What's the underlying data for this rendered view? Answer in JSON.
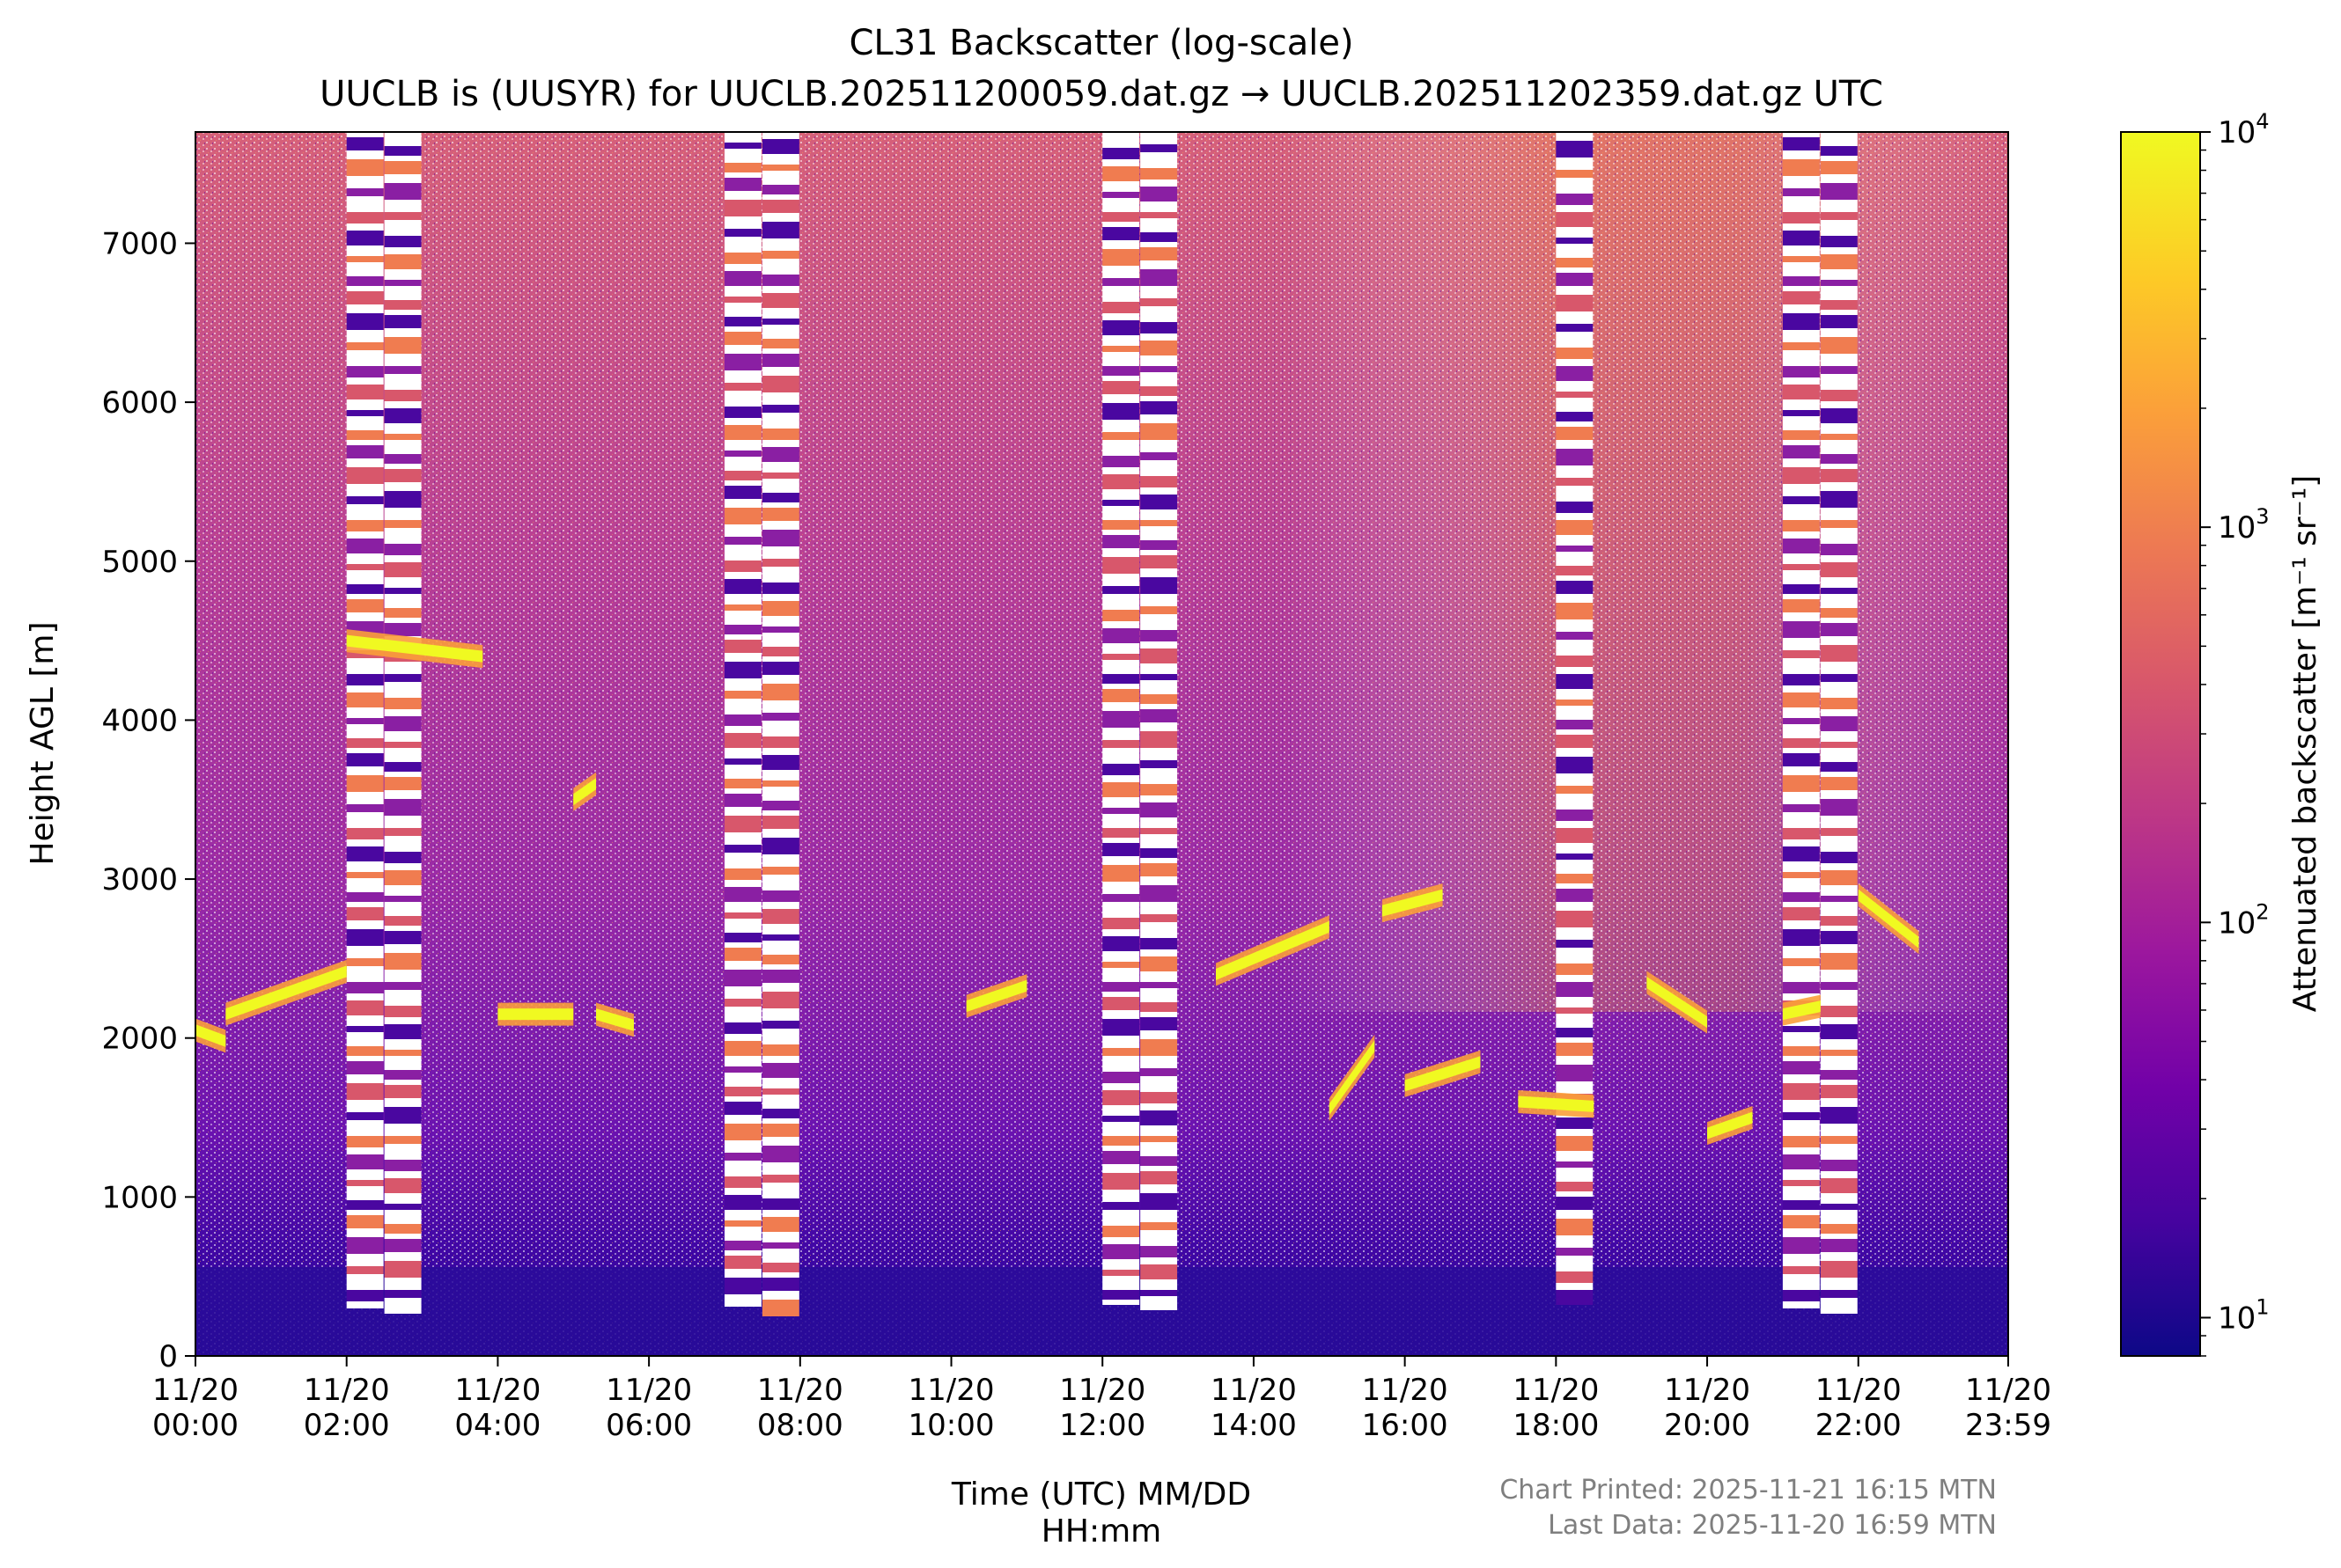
{
  "chart_data": {
    "type": "heatmap",
    "title": "CL31 Backscatter (log-scale)",
    "subtitle": "UUCLB is (UUSYR) for UUCLB.202511200059.dat.gz → UUCLB.202511202359.dat.gz UTC",
    "xlabel_line1": "Time (UTC) MM/DD",
    "xlabel_line2": "HH:mm",
    "ylabel": "Height AGL [m]",
    "xlim_hours": [
      0,
      23.983
    ],
    "ylim": [
      0,
      7700
    ],
    "x_ticks": [
      {
        "hour": 0,
        "date": "11/20",
        "time": "00:00"
      },
      {
        "hour": 2,
        "date": "11/20",
        "time": "02:00"
      },
      {
        "hour": 4,
        "date": "11/20",
        "time": "04:00"
      },
      {
        "hour": 6,
        "date": "11/20",
        "time": "06:00"
      },
      {
        "hour": 8,
        "date": "11/20",
        "time": "08:00"
      },
      {
        "hour": 10,
        "date": "11/20",
        "time": "10:00"
      },
      {
        "hour": 12,
        "date": "11/20",
        "time": "12:00"
      },
      {
        "hour": 14,
        "date": "11/20",
        "time": "14:00"
      },
      {
        "hour": 16,
        "date": "11/20",
        "time": "16:00"
      },
      {
        "hour": 18,
        "date": "11/20",
        "time": "18:00"
      },
      {
        "hour": 20,
        "date": "11/20",
        "time": "20:00"
      },
      {
        "hour": 22,
        "date": "11/20",
        "time": "22:00"
      },
      {
        "hour": 23.983,
        "date": "11/20",
        "time": "23:59"
      }
    ],
    "y_ticks": [
      {
        "value": 0,
        "label": "0"
      },
      {
        "value": 1000,
        "label": "1000"
      },
      {
        "value": 2000,
        "label": "2000"
      },
      {
        "value": 3000,
        "label": "3000"
      },
      {
        "value": 4000,
        "label": "4000"
      },
      {
        "value": 5000,
        "label": "5000"
      },
      {
        "value": 6000,
        "label": "6000"
      },
      {
        "value": 7000,
        "label": "7000"
      }
    ],
    "colorbar": {
      "colormap": "plasma",
      "scale": "log",
      "range": [
        8,
        10000
      ],
      "label": "Attenuated backscatter [m⁻¹ sr⁻¹]",
      "ticks": [
        {
          "value": 10,
          "base": "10",
          "exp": "1"
        },
        {
          "value": 100,
          "base": "10",
          "exp": "2"
        },
        {
          "value": 1000,
          "base": "10",
          "exp": "3"
        },
        {
          "value": 10000,
          "base": "10",
          "exp": "4"
        }
      ],
      "colors": [
        "#0d0887",
        "#46039f",
        "#7201a8",
        "#9c179e",
        "#bd3786",
        "#d8576b",
        "#ed7953",
        "#fb9f3a",
        "#fdca26",
        "#f0f921"
      ]
    },
    "banded_data_gaps_hours": [
      [
        2.0,
        2.5
      ],
      [
        2.5,
        3.0
      ],
      [
        7.0,
        7.5
      ],
      [
        7.5,
        8.0
      ],
      [
        12.0,
        12.5
      ],
      [
        12.5,
        13.0
      ],
      [
        18.0,
        18.5
      ],
      [
        21.0,
        21.5
      ],
      [
        21.5,
        22.0
      ]
    ],
    "cloud_layers": [
      {
        "t_start": 0.0,
        "t_end": 0.4,
        "h_start": 2050,
        "h_end": 1980
      },
      {
        "t_start": 0.4,
        "t_end": 2.0,
        "h_start": 2150,
        "h_end": 2420
      },
      {
        "t_start": 2.0,
        "t_end": 3.8,
        "h_start": 4500,
        "h_end": 4400
      },
      {
        "t_start": 4.0,
        "t_end": 5.0,
        "h_start": 2150,
        "h_end": 2150
      },
      {
        "t_start": 5.3,
        "t_end": 5.8,
        "h_start": 2150,
        "h_end": 2080
      },
      {
        "t_start": 5.0,
        "t_end": 5.3,
        "h_start": 3500,
        "h_end": 3600
      },
      {
        "t_start": 10.2,
        "t_end": 11.0,
        "h_start": 2200,
        "h_end": 2330
      },
      {
        "t_start": 13.5,
        "t_end": 15.0,
        "h_start": 2400,
        "h_end": 2700
      },
      {
        "t_start": 15.7,
        "t_end": 16.5,
        "h_start": 2800,
        "h_end": 2900
      },
      {
        "t_start": 15.0,
        "t_end": 15.6,
        "h_start": 1550,
        "h_end": 1950
      },
      {
        "t_start": 16.0,
        "t_end": 17.0,
        "h_start": 1700,
        "h_end": 1850
      },
      {
        "t_start": 17.5,
        "t_end": 18.5,
        "h_start": 1600,
        "h_end": 1570
      },
      {
        "t_start": 19.2,
        "t_end": 20.0,
        "h_start": 2350,
        "h_end": 2100
      },
      {
        "t_start": 20.0,
        "t_end": 20.6,
        "h_start": 1400,
        "h_end": 1500
      },
      {
        "t_start": 21.0,
        "t_end": 21.5,
        "h_start": 2150,
        "h_end": 2200
      },
      {
        "t_start": 22.0,
        "t_end": 22.8,
        "h_start": 2900,
        "h_end": 2600
      }
    ],
    "grid": false
  },
  "footer": {
    "printed": "Chart Printed: 2025-11-21 16:15 MTN",
    "last_data": "Last Data: 2025-11-20 16:59 MTN"
  }
}
